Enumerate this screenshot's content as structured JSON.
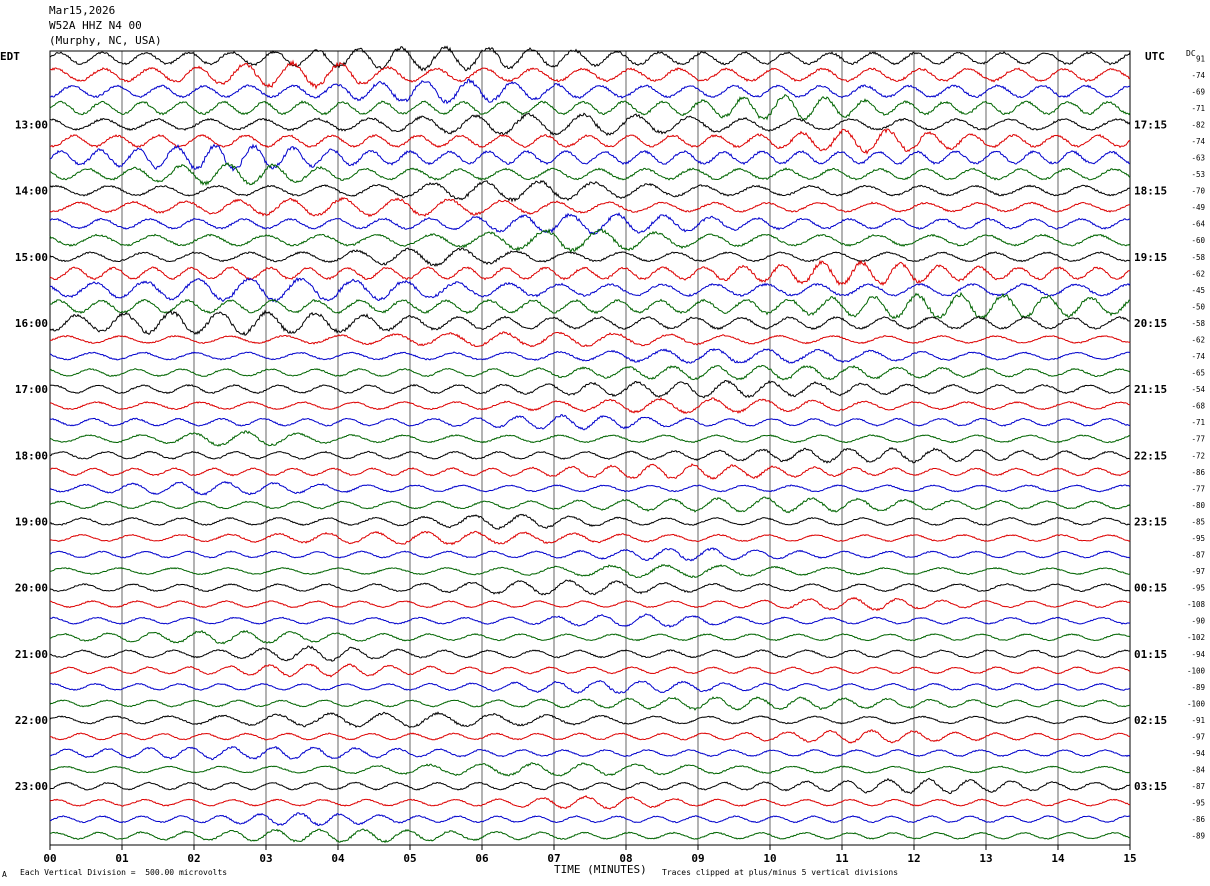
{
  "header": {
    "date": "Mar15,2026",
    "station": "W52A HHZ N4 00",
    "location": "(Murphy, NC, USA)"
  },
  "left_zone": "EDT",
  "right_zone": "UTC",
  "dc_label": "DC",
  "footer": {
    "x_axis_title": "TIME (MINUTES)",
    "scale_note": "Each Vertical Division =  500.00 microvolts",
    "clip_note": "Traces clipped at plus/minus 5 vertical divisions",
    "corner_mark": "A"
  },
  "colors": {
    "cycle": [
      "#000000",
      "#dd0000",
      "#0000cc",
      "#006400"
    ],
    "grid": "#000000"
  },
  "chart_data": {
    "type": "line",
    "title": "",
    "xlabel": "TIME (MINUTES)",
    "xlim": [
      0,
      15
    ],
    "x_ticks": [
      "00",
      "01",
      "02",
      "03",
      "04",
      "05",
      "06",
      "07",
      "08",
      "09",
      "10",
      "11",
      "12",
      "13",
      "14",
      "15"
    ],
    "rows_per_hour": 4,
    "left_hour_labels": [
      "13:00",
      "14:00",
      "15:00",
      "16:00",
      "17:00",
      "18:00",
      "19:00",
      "20:00",
      "21:00",
      "22:00",
      "23:00"
    ],
    "right_hour_labels": [
      "17:15",
      "18:15",
      "19:15",
      "20:15",
      "21:15",
      "22:15",
      "23:15",
      "00:15",
      "01:15",
      "02:15",
      "03:15"
    ],
    "dc_offsets": [
      91,
      -74,
      -69,
      -71,
      -82,
      -74,
      -63,
      -53,
      -70,
      -49,
      -64,
      -60,
      -58,
      -62,
      -45,
      -50,
      -58,
      -62,
      -74,
      -65,
      -54,
      -68,
      -71,
      -77,
      -72,
      -86,
      -77,
      -80,
      -85,
      -95,
      -87,
      -97,
      -95,
      -108,
      -90,
      -102,
      -94,
      -100,
      -89,
      -100,
      -91,
      -97,
      -94,
      -84,
      -87,
      -95,
      -86,
      -89
    ],
    "trace_amplitude": [
      1.3,
      1.4,
      1.3,
      1.4,
      1.2,
      1.3,
      1.4,
      1.2,
      1.1,
      1.0,
      1.1,
      1.2,
      1.0,
      1.3,
      1.3,
      1.4,
      1.3,
      0.8,
      0.8,
      0.8,
      0.9,
      0.8,
      0.8,
      0.8,
      0.8,
      0.8,
      0.7,
      0.8,
      0.8,
      0.7,
      0.7,
      0.7,
      0.8,
      0.7,
      0.7,
      0.7,
      0.8,
      0.7,
      0.7,
      0.7,
      0.8,
      0.7,
      0.7,
      0.7,
      0.8,
      0.7,
      0.7,
      0.7
    ]
  }
}
